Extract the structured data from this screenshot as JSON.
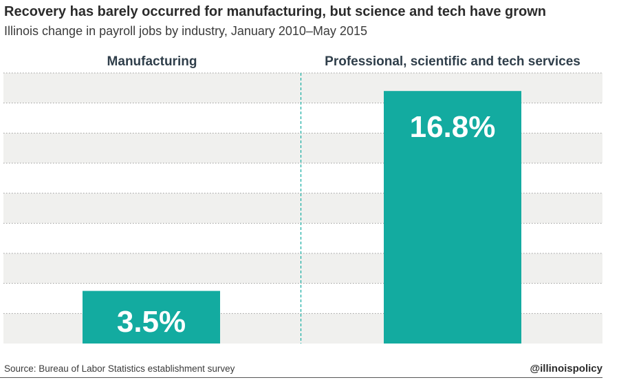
{
  "header": {
    "title": "Recovery has barely occurred for manufacturing, but science and tech have grown",
    "subtitle": "Illinois change in payroll jobs by industry, January 2010–May 2015"
  },
  "footer": {
    "source": "Source: Bureau of Labor Statistics establishment survey",
    "handle": "@illinoispolicy"
  },
  "colors": {
    "bar": "#13aba0",
    "band": "#f0f0ee",
    "divider": "#13aba0"
  },
  "chart_data": {
    "type": "bar",
    "categories": [
      "Manufacturing",
      "Professional, scientific and tech services"
    ],
    "values": [
      3.5,
      16.8
    ],
    "data_labels": [
      "3.5%",
      "16.8%"
    ],
    "title": "",
    "xlabel": "",
    "ylabel": "",
    "ylim": [
      0,
      18
    ],
    "grid": true
  }
}
